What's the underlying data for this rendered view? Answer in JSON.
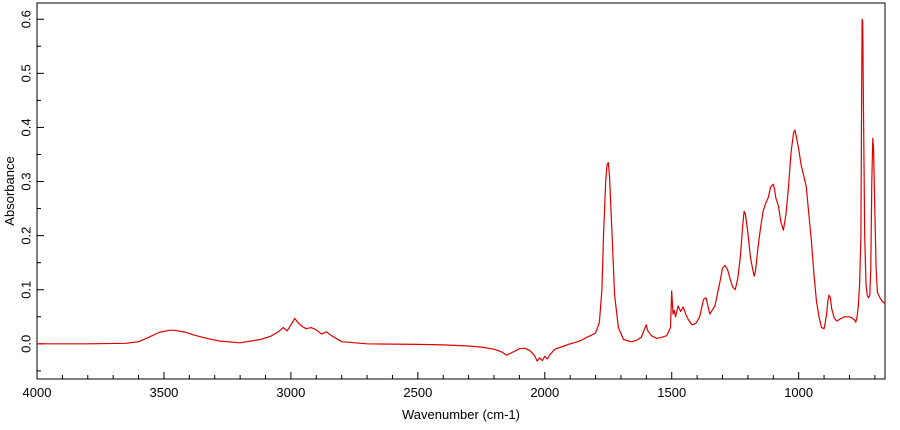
{
  "chart_data": {
    "type": "line",
    "title": "",
    "xlabel": "Wavenumber (cm-1)",
    "ylabel": "Absorbance",
    "xlim": [
      4000,
      660
    ],
    "ylim": [
      -0.065,
      0.63
    ],
    "x_reversed": true,
    "grid": false,
    "legend": "none",
    "x_ticks": [
      "4000",
      "3500",
      "3000",
      "2500",
      "2000",
      "1500",
      "1000"
    ],
    "x_tick_values": [
      4000,
      3500,
      3000,
      2500,
      2000,
      1500,
      1000
    ],
    "y_ticks": [
      "0.0",
      "0.1",
      "0.2",
      "0.3",
      "0.4",
      "0.5",
      "0.6"
    ],
    "y_tick_values": [
      0.0,
      0.1,
      0.2,
      0.3,
      0.4,
      0.5,
      0.6
    ],
    "line_color": "#e00000",
    "series": [
      {
        "x": [
          4000,
          3800,
          3650,
          3600,
          3560,
          3520,
          3480,
          3460,
          3420,
          3380,
          3330,
          3280,
          3200,
          3120,
          3080,
          3050,
          3030,
          3015,
          3000,
          2985,
          2970,
          2955,
          2940,
          2920,
          2900,
          2880,
          2860,
          2840,
          2800,
          2700,
          2500,
          2400,
          2300,
          2250,
          2200,
          2170,
          2150,
          2120,
          2100,
          2080,
          2060,
          2040,
          2030,
          2020,
          2010,
          2000,
          1990,
          1980,
          1960,
          1930,
          1900,
          1870,
          1850,
          1835,
          1820,
          1800,
          1785,
          1775,
          1768,
          1760,
          1755,
          1750,
          1745,
          1735,
          1725,
          1710,
          1690,
          1660,
          1640,
          1620,
          1605,
          1600,
          1595,
          1580,
          1560,
          1540,
          1520,
          1505,
          1500,
          1495,
          1490,
          1485,
          1475,
          1465,
          1455,
          1445,
          1435,
          1420,
          1405,
          1390,
          1375,
          1365,
          1350,
          1330,
          1310,
          1300,
          1290,
          1280,
          1270,
          1260,
          1250,
          1240,
          1230,
          1220,
          1215,
          1210,
          1200,
          1190,
          1180,
          1175,
          1170,
          1160,
          1150,
          1140,
          1130,
          1120,
          1110,
          1100,
          1095,
          1090,
          1080,
          1070,
          1060,
          1050,
          1040,
          1030,
          1020,
          1015,
          1010,
          1000,
          990,
          980,
          970,
          960,
          950,
          940,
          930,
          920,
          910,
          900,
          895,
          890,
          885,
          880,
          875,
          870,
          860,
          850,
          840,
          820,
          800,
          790,
          780,
          775,
          770,
          765,
          760,
          755,
          752,
          750,
          748,
          745,
          740,
          735,
          730,
          725,
          720,
          716,
          712,
          708,
          705,
          700,
          695,
          690,
          680,
          670,
          660
        ],
        "y": [
          0.0,
          0.0,
          0.001,
          0.004,
          0.012,
          0.021,
          0.025,
          0.025,
          0.022,
          0.016,
          0.01,
          0.005,
          0.002,
          0.008,
          0.014,
          0.022,
          0.03,
          0.024,
          0.035,
          0.047,
          0.038,
          0.032,
          0.028,
          0.03,
          0.026,
          0.018,
          0.022,
          0.015,
          0.004,
          0.0,
          -0.001,
          -0.002,
          -0.004,
          -0.006,
          -0.01,
          -0.015,
          -0.021,
          -0.014,
          -0.009,
          -0.008,
          -0.012,
          -0.022,
          -0.032,
          -0.026,
          -0.031,
          -0.023,
          -0.028,
          -0.02,
          -0.01,
          -0.005,
          0.0,
          0.004,
          0.008,
          0.012,
          0.015,
          0.02,
          0.04,
          0.1,
          0.21,
          0.3,
          0.33,
          0.335,
          0.31,
          0.2,
          0.09,
          0.03,
          0.008,
          0.004,
          0.006,
          0.012,
          0.03,
          0.035,
          0.025,
          0.015,
          0.01,
          0.012,
          0.015,
          0.03,
          0.098,
          0.055,
          0.062,
          0.05,
          0.07,
          0.06,
          0.068,
          0.055,
          0.045,
          0.035,
          0.038,
          0.05,
          0.082,
          0.085,
          0.055,
          0.07,
          0.115,
          0.14,
          0.145,
          0.137,
          0.12,
          0.105,
          0.1,
          0.12,
          0.16,
          0.22,
          0.245,
          0.24,
          0.205,
          0.16,
          0.135,
          0.125,
          0.135,
          0.18,
          0.215,
          0.245,
          0.26,
          0.27,
          0.29,
          0.295,
          0.285,
          0.27,
          0.255,
          0.225,
          0.21,
          0.24,
          0.29,
          0.355,
          0.39,
          0.395,
          0.385,
          0.36,
          0.33,
          0.31,
          0.29,
          0.24,
          0.19,
          0.13,
          0.08,
          0.05,
          0.03,
          0.028,
          0.04,
          0.055,
          0.08,
          0.09,
          0.085,
          0.065,
          0.048,
          0.042,
          0.045,
          0.05,
          0.05,
          0.048,
          0.044,
          0.04,
          0.05,
          0.07,
          0.11,
          0.2,
          0.45,
          0.6,
          0.595,
          0.45,
          0.2,
          0.11,
          0.09,
          0.085,
          0.09,
          0.14,
          0.3,
          0.38,
          0.36,
          0.25,
          0.14,
          0.095,
          0.085,
          0.078,
          0.074
        ]
      }
    ]
  }
}
